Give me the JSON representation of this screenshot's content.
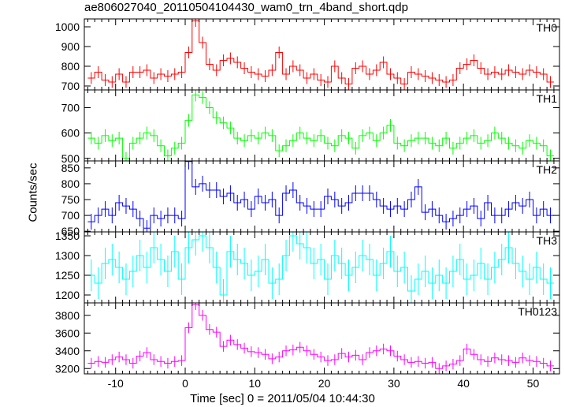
{
  "chart_data": {
    "type": "line",
    "title": "ae806027040_20110504104430_wam0_trn_4band_short.qdp",
    "xlabel": "Time [sec] 0 = 2011/05/04 10:44:30",
    "ylabel": "Counts/sec",
    "xlim": [
      -14.5,
      53.8
    ],
    "x_ticks": [
      -10,
      0,
      10,
      20,
      30,
      40,
      50
    ],
    "bin_width": 1,
    "x": [
      -13.5,
      -12.5,
      -11.5,
      -10.5,
      -9.5,
      -8.5,
      -7.5,
      -6.5,
      -5.5,
      -4.5,
      -3.5,
      -2.5,
      -1.5,
      -0.5,
      0.5,
      1.5,
      2.5,
      3.5,
      4.5,
      5.5,
      6.5,
      7.5,
      8.5,
      9.5,
      10.5,
      11.5,
      12.5,
      13.5,
      14.5,
      15.5,
      16.5,
      17.5,
      18.5,
      19.5,
      20.5,
      21.5,
      22.5,
      23.5,
      24.5,
      25.5,
      26.5,
      27.5,
      28.5,
      29.5,
      30.5,
      31.5,
      32.5,
      33.5,
      34.5,
      35.5,
      36.5,
      37.5,
      38.5,
      39.5,
      40.5,
      41.5,
      42.5,
      43.5,
      44.5,
      45.5,
      46.5,
      47.5,
      48.5,
      49.5,
      50.5,
      51.5,
      52.5
    ],
    "series": [
      {
        "name": "TH0",
        "color": "#ff0000",
        "ylim": [
          680,
          1040
        ],
        "ticks": [
          700,
          800,
          900,
          1000
        ],
        "err": 30,
        "values": [
          740,
          770,
          730,
          720,
          760,
          720,
          770,
          770,
          780,
          740,
          760,
          750,
          760,
          770,
          870,
          1030,
          920,
          810,
          780,
          830,
          840,
          820,
          790,
          770,
          760,
          750,
          780,
          870,
          760,
          800,
          780,
          740,
          760,
          730,
          720,
          800,
          740,
          710,
          790,
          800,
          760,
          780,
          820,
          760,
          740,
          710,
          770,
          760,
          750,
          740,
          730,
          720,
          730,
          790,
          810,
          830,
          790,
          760,
          770,
          760,
          780,
          770,
          760,
          780,
          770,
          760,
          720
        ]
      },
      {
        "name": "TH1",
        "color": "#00ff00",
        "ylim": [
          490,
          770
        ],
        "ticks": [
          500,
          600,
          700
        ],
        "err": 25,
        "values": [
          580,
          560,
          590,
          570,
          580,
          500,
          560,
          580,
          600,
          590,
          550,
          510,
          540,
          560,
          650,
          750,
          740,
          700,
          660,
          640,
          620,
          580,
          570,
          590,
          580,
          600,
          590,
          530,
          550,
          570,
          600,
          580,
          570,
          590,
          560,
          550,
          590,
          580,
          540,
          590,
          600,
          570,
          600,
          630,
          560,
          550,
          570,
          580,
          580,
          560,
          550,
          580,
          540,
          560,
          580,
          590,
          560,
          570,
          600,
          580,
          560,
          550,
          540,
          570,
          560,
          550,
          510
        ]
      },
      {
        "name": "TH2",
        "color": "#0000ff",
        "ylim": [
          648,
          872
        ],
        "ticks": [
          650,
          700,
          750,
          800,
          850
        ],
        "err": 25,
        "values": [
          680,
          700,
          720,
          700,
          740,
          730,
          720,
          690,
          660,
          700,
          690,
          700,
          700,
          690,
          870,
          790,
          800,
          780,
          780,
          760,
          770,
          740,
          750,
          720,
          760,
          740,
          750,
          700,
          770,
          780,
          740,
          730,
          720,
          720,
          760,
          750,
          730,
          740,
          770,
          770,
          770,
          750,
          730,
          720,
          730,
          720,
          750,
          790,
          710,
          720,
          700,
          680,
          690,
          700,
          720,
          730,
          690,
          740,
          700,
          700,
          720,
          740,
          730,
          750,
          700,
          720,
          700
        ]
      },
      {
        "name": "TH3",
        "color": "#00ffff",
        "ylim": [
          1180,
          1360
        ],
        "ticks": [
          1200,
          1250,
          1300,
          1350
        ],
        "err": 40,
        "values": [
          1250,
          1230,
          1280,
          1290,
          1270,
          1240,
          1260,
          1300,
          1270,
          1320,
          1290,
          1260,
          1310,
          1240,
          1320,
          1340,
          1350,
          1320,
          1270,
          1200,
          1310,
          1290,
          1280,
          1250,
          1260,
          1290,
          1230,
          1240,
          1300,
          1350,
          1330,
          1320,
          1280,
          1290,
          1240,
          1300,
          1280,
          1250,
          1270,
          1300,
          1290,
          1250,
          1280,
          1310,
          1260,
          1270,
          1210,
          1240,
          1260,
          1230,
          1250,
          1230,
          1260,
          1290,
          1240,
          1250,
          1280,
          1240,
          1270,
          1290,
          1320,
          1280,
          1260,
          1240,
          1270,
          1240,
          1230
        ]
      },
      {
        "name": "TH0123",
        "color": "#ff00ff",
        "ylim": [
          3140,
          3940
        ],
        "ticks": [
          3200,
          3400,
          3600,
          3800
        ],
        "err": 60,
        "values": [
          3260,
          3280,
          3270,
          3300,
          3330,
          3300,
          3260,
          3340,
          3380,
          3300,
          3280,
          3260,
          3280,
          3290,
          3660,
          3920,
          3800,
          3640,
          3610,
          3450,
          3520,
          3470,
          3430,
          3390,
          3380,
          3360,
          3310,
          3330,
          3400,
          3410,
          3440,
          3400,
          3360,
          3330,
          3290,
          3300,
          3370,
          3330,
          3350,
          3300,
          3380,
          3400,
          3420,
          3400,
          3340,
          3300,
          3270,
          3280,
          3260,
          3270,
          3200,
          3230,
          3250,
          3290,
          3420,
          3360,
          3300,
          3280,
          3320,
          3300,
          3290,
          3270,
          3320,
          3290,
          3280,
          3260,
          3230
        ]
      }
    ]
  }
}
